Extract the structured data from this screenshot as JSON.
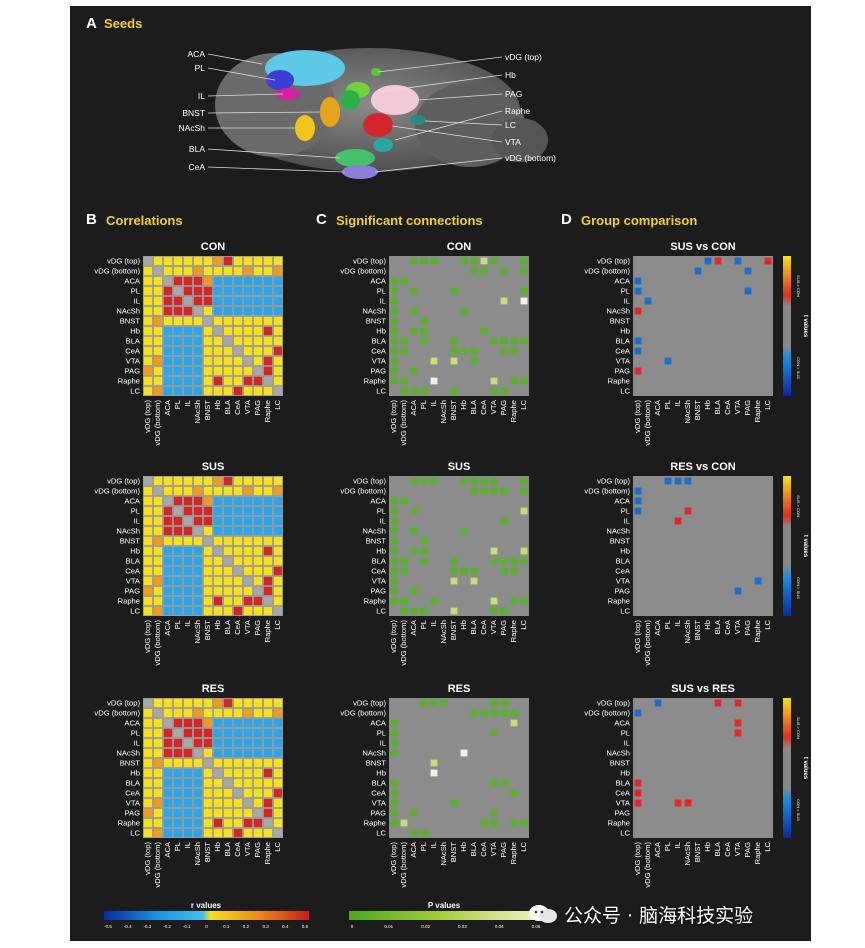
{
  "panel_a": {
    "letter": "A",
    "title": "Seeds",
    "labels_left": [
      "ACA",
      "PL",
      "IL",
      "BNST",
      "NAcSh",
      "BLA",
      "CeA"
    ],
    "labels_right": [
      "vDG (top)",
      "Hb",
      "PAG",
      "Raphe",
      "LC",
      "VTA",
      "vDG (bottom)"
    ]
  },
  "panel_b": {
    "letter": "B",
    "title": "Correlations"
  },
  "panel_c": {
    "letter": "C",
    "title": "Significant connections"
  },
  "panel_d": {
    "letter": "D",
    "title": "Group comparison"
  },
  "regions": [
    "vDG (top)",
    "vDG (bottom)",
    "ACA",
    "PL",
    "IL",
    "NAcSh",
    "BNST",
    "Hb",
    "BLA",
    "CeA",
    "VTA",
    "PAG",
    "Raphe",
    "LC"
  ],
  "colorbars": {
    "r": {
      "label": "r values",
      "ticks": [
        "-0.5",
        "-0.4",
        "-0.3",
        "-0.2",
        "-0.1",
        "0",
        "0.1",
        "0.2",
        "0.3",
        "0.4",
        "0.5"
      ]
    },
    "p": {
      "label": "P values",
      "ticks": [
        "0",
        "0.01",
        "0.02",
        "0.03",
        "0.04",
        "0.05"
      ]
    },
    "t": {
      "title": "t values",
      "top": "SUS > CON",
      "bottom": "CON > SUS"
    }
  },
  "chart_data": [
    {
      "type": "heatmap",
      "panel": "B",
      "title": "CON",
      "value": "r",
      "grid": [
        "DYYYYYYORYYYYY",
        "YDYYYOYYYYOYYO",
        "YYDRRROBBBBBBB",
        "YYRDRRRBBBBBBB",
        "YYRRDRRBBBBBBB",
        "YYRRRDYBBBBBBB",
        "YOYYYYDYYYYYYY",
        "YYBBBBYDYYYYRY",
        "YYBBBBYYDYYYYY",
        "YYBBBBYYYDYYYR",
        "YOBBBBYYYYDYRY",
        "OYBBBBYYYYYDRY",
        "YYBBBBYRYYRRDY",
        "YOBBBBYYYRYYYD"
      ]
    },
    {
      "type": "heatmap",
      "panel": "B",
      "title": "SUS",
      "value": "r",
      "grid": [
        "DYYYYYYORYYYYY",
        "YDYYYOYYYYOYYO",
        "YYDRRROBBBBBBB",
        "YYRDRRRBBBBBBB",
        "YYRRDRRBBBBBBB",
        "YYRRRDYBBBBBBB",
        "YOYYYYDYYYYYYY",
        "YYBBBBYDYYYYRY",
        "YYBBBBYYDYYYYY",
        "YYBBBBYYYDYYYR",
        "YOBBBBYYYYDYRY",
        "OYBBBBYYYYYDRY",
        "YYBBBBYRYYRRDY",
        "YOBBBBYYYRYYYD"
      ]
    },
    {
      "type": "heatmap",
      "panel": "B",
      "title": "RES",
      "value": "r",
      "grid": [
        "DYYYYYYORYYYYY",
        "YDYYYOYYYYOYYO",
        "YYDRRROBBBBBBB",
        "YYRDRRRBBBBBBB",
        "YYRRDRRBBBBBBB",
        "YYRRRDYBBBBBBB",
        "YOYYYYDYYYYYYY",
        "YYBBBBYDYYYYRY",
        "YYBBBBYYDYYYYY",
        "YYBBBBYYYDYYYR",
        "YOBBBBYYYYDYRY",
        "OYBBBBYYYYYDRY",
        "YYBBBBYRYYRRDY",
        "YOBBBBYYYRYYYD"
      ]
    },
    {
      "type": "heatmap",
      "panel": "C",
      "title": "CON",
      "value": "P",
      "grid": [
        "D.GGG..GGLG..G",
        ".D......GG.G.G",
        "GGD...........",
        "G.GD..G......G",
        "G...D......L.W",
        "G.G..D.G......",
        "G..G..D.......",
        "G.GG...D.G....",
        "GG.G..G.D.GGGG",
        "GG....GGGD.GG.",
        "G...L.L.G.D...",
        "G.G.........D.",
        "GG..W.....L.GG",
        ".GGG..G...GG.D"
      ]
    },
    {
      "type": "heatmap",
      "panel": "C",
      "title": "SUS",
      "value": "P",
      "grid": [
        "D.GGG..GGGG..G",
        ".D......GGGG.G",
        "GGD...........",
        "G.GD.........L",
        "G...D......G..",
        "G.G..D.G......",
        "G..G..D.......",
        "G.GG...D..L..L",
        "GG.G..G.D.GGGG",
        "GG....GGGD.GG.",
        "G.....L.L.D...",
        "G.G.........D.",
        "GG..G.....L.GG",
        ".GGG..L...GG.D"
      ]
    },
    {
      "type": "heatmap",
      "panel": "C",
      "title": "RES",
      "value": "P",
      "grid": [
        "D..GGG....GG..",
        ".D......GGGGG.",
        "G.D.........L.",
        "G..D......G...",
        "G...D.........",
        "G....D.W......",
        "....L.D.......",
        "....W..D......",
        "G.......D.GG..",
        "G........D..G.",
        "G.....G...D...",
        "G.G.......G.D.",
        "GL.......GG.GG",
        "..GG.........D"
      ]
    },
    {
      "type": "heatmap",
      "panel": "D",
      "title": "SUS vs CON",
      "value": "t",
      "grid": [
        ".......BR.B..R",
        "......B....B..",
        "B.............",
        "B..........B..",
        ".B............",
        "R.............",
        "..............",
        "..............",
        "B.............",
        "B.............",
        "...B..........",
        "R.............",
        "..............",
        ".............."
      ]
    },
    {
      "type": "heatmap",
      "panel": "D",
      "title": "RES vs CON",
      "value": "t",
      "grid": [
        "...BBB........",
        "B.............",
        "B.............",
        "B....R........",
        "....R.........",
        "..............",
        "..............",
        "..............",
        "..............",
        "..............",
        "............B.",
        "..........B...",
        "..............",
        ".............."
      ]
    },
    {
      "type": "heatmap",
      "panel": "D",
      "title": "SUS vs RES",
      "value": "t",
      "grid": [
        "..B.....R.R...",
        "B.............",
        "..........R...",
        "..........R...",
        "..............",
        "..............",
        "..............",
        "..............",
        "R.............",
        "R.............",
        "R...RR........",
        "..............",
        "..............",
        ".............."
      ]
    }
  ]
}
